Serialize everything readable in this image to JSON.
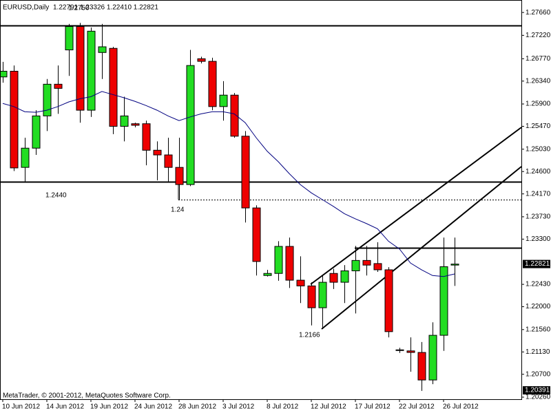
{
  "chart_data": {
    "type": "candlestick",
    "title": "EURUSD,Daily",
    "header_prices": "1.22791 1.23326 1.22410 1.22821",
    "footer": "MetaTrader, © 2001-2012, MetaQuotes Software Corp.",
    "categories": [
      "10 Jun 2012",
      null,
      null,
      null,
      "14 Jun 2012",
      null,
      null,
      null,
      "19 Jun 2012",
      null,
      null,
      null,
      "24 Jun 2012",
      null,
      null,
      null,
      "28 Jun 2012",
      null,
      null,
      null,
      "3 Jul 2012",
      null,
      null,
      null,
      "8 Jul 2012",
      null,
      null,
      null,
      "12 Jul 2012",
      null,
      null,
      null,
      "17 Jul 2012",
      null,
      null,
      null,
      "22 Jul 2012",
      null,
      null,
      null,
      "26 Jul 2012",
      null
    ],
    "open": [
      1.2642,
      1.2653,
      1.2468,
      1.2505,
      1.2567,
      1.2628,
      1.2694,
      1.2739,
      1.2578,
      1.2689,
      1.2697,
      1.2547,
      1.2552,
      1.2552,
      1.2501,
      1.2492,
      1.2468,
      1.2435,
      1.2677,
      1.2672,
      1.2585,
      1.2607,
      1.2528,
      1.239,
      1.226,
      1.2264,
      1.2316,
      1.2251,
      1.224,
      1.2198,
      1.2264,
      1.2247,
      1.2269,
      1.2289,
      1.2283,
      1.2271,
      1.2117,
      1.2115,
      1.2112,
      1.2059,
      1.2145,
      1.228
    ],
    "high": [
      1.2671,
      1.2664,
      1.2525,
      1.2578,
      1.2638,
      1.2664,
      1.2744,
      1.2746,
      1.2737,
      1.2744,
      1.27,
      1.2604,
      1.2554,
      1.2558,
      1.2518,
      1.2525,
      1.2525,
      1.2694,
      1.2681,
      1.2679,
      1.2634,
      1.2611,
      1.2538,
      1.2395,
      1.2271,
      1.2326,
      1.2333,
      1.2297,
      1.2247,
      1.226,
      1.2273,
      1.228,
      1.2317,
      1.2317,
      1.2324,
      1.2276,
      1.2121,
      1.2141,
      1.2132,
      1.217,
      1.2333,
      1.2333
    ],
    "low": [
      1.2631,
      1.2461,
      1.244,
      1.2492,
      1.2538,
      1.2571,
      1.2644,
      1.2554,
      1.2565,
      1.2638,
      1.2532,
      1.2518,
      1.2545,
      1.2472,
      1.2443,
      1.2439,
      1.2406,
      1.2432,
      1.2668,
      1.2578,
      1.2558,
      1.2525,
      1.2362,
      1.226,
      1.2258,
      1.225,
      1.2236,
      1.2207,
      1.2164,
      1.2157,
      1.2234,
      1.2207,
      1.2187,
      1.226,
      1.2267,
      1.2141,
      1.2111,
      1.2075,
      1.2038,
      1.2051,
      1.2115,
      1.224
    ],
    "close": [
      1.2653,
      1.2467,
      1.2505,
      1.2567,
      1.2628,
      1.262,
      1.2739,
      1.2578,
      1.273,
      1.27,
      1.2547,
      1.2567,
      1.2549,
      1.2501,
      1.2492,
      1.2468,
      1.2435,
      1.2664,
      1.2672,
      1.2585,
      1.2607,
      1.2528,
      1.239,
      1.2287,
      1.2264,
      1.2316,
      1.2251,
      1.224,
      1.2198,
      1.2247,
      1.2247,
      1.2269,
      1.2289,
      1.228,
      1.2271,
      1.2152,
      1.2116,
      1.2112,
      1.2059,
      1.2145,
      1.2277,
      1.2282
    ],
    "ma": {
      "color": "#000080",
      "values": [
        1.2591,
        1.2585,
        1.2575,
        1.2574,
        1.2578,
        1.2585,
        1.2594,
        1.26,
        1.2604,
        1.2614,
        1.2608,
        1.2602,
        1.2595,
        1.2587,
        1.2578,
        1.2567,
        1.2558,
        1.2565,
        1.2571,
        1.2575,
        1.2575,
        1.2571,
        1.2554,
        1.2525,
        1.2499,
        1.2479,
        1.2456,
        1.2435,
        1.2419,
        1.2406,
        1.2393,
        1.2379,
        1.2369,
        1.236,
        1.235,
        1.2326,
        1.2311,
        1.2284,
        1.2271,
        1.226,
        1.2258,
        1.2263
      ]
    },
    "up_color": "#22dd22",
    "down_color": "#ee0000",
    "ylim": [
      1.2022,
      1.279
    ],
    "yticks": [
      {
        "value": 1.2766,
        "label": "1.27660"
      },
      {
        "value": 1.2722,
        "label": "1.27220"
      },
      {
        "value": 1.2677,
        "label": "1.26770"
      },
      {
        "value": 1.2634,
        "label": "1.26340"
      },
      {
        "value": 1.259,
        "label": "1.25900"
      },
      {
        "value": 1.2547,
        "label": "1.25470"
      },
      {
        "value": 1.2503,
        "label": "1.25030"
      },
      {
        "value": 1.246,
        "label": "1.24600"
      },
      {
        "value": 1.2417,
        "label": "1.24170"
      },
      {
        "value": 1.2373,
        "label": "1.23730"
      },
      {
        "value": 1.233,
        "label": "1.23300"
      },
      {
        "value": 1.2243,
        "label": "1.22430"
      },
      {
        "value": 1.22,
        "label": "1.22000"
      },
      {
        "value": 1.2156,
        "label": "1.21560"
      },
      {
        "value": 1.2113,
        "label": "1.21130"
      },
      {
        "value": 1.207,
        "label": "1.20700"
      },
      {
        "value": 1.2026,
        "label": "1.20260"
      }
    ],
    "price_markers": [
      1.22821,
      1.20391
    ],
    "annotations": [
      "1.2750",
      "1.2440",
      "1.24",
      "1.2166"
    ]
  }
}
